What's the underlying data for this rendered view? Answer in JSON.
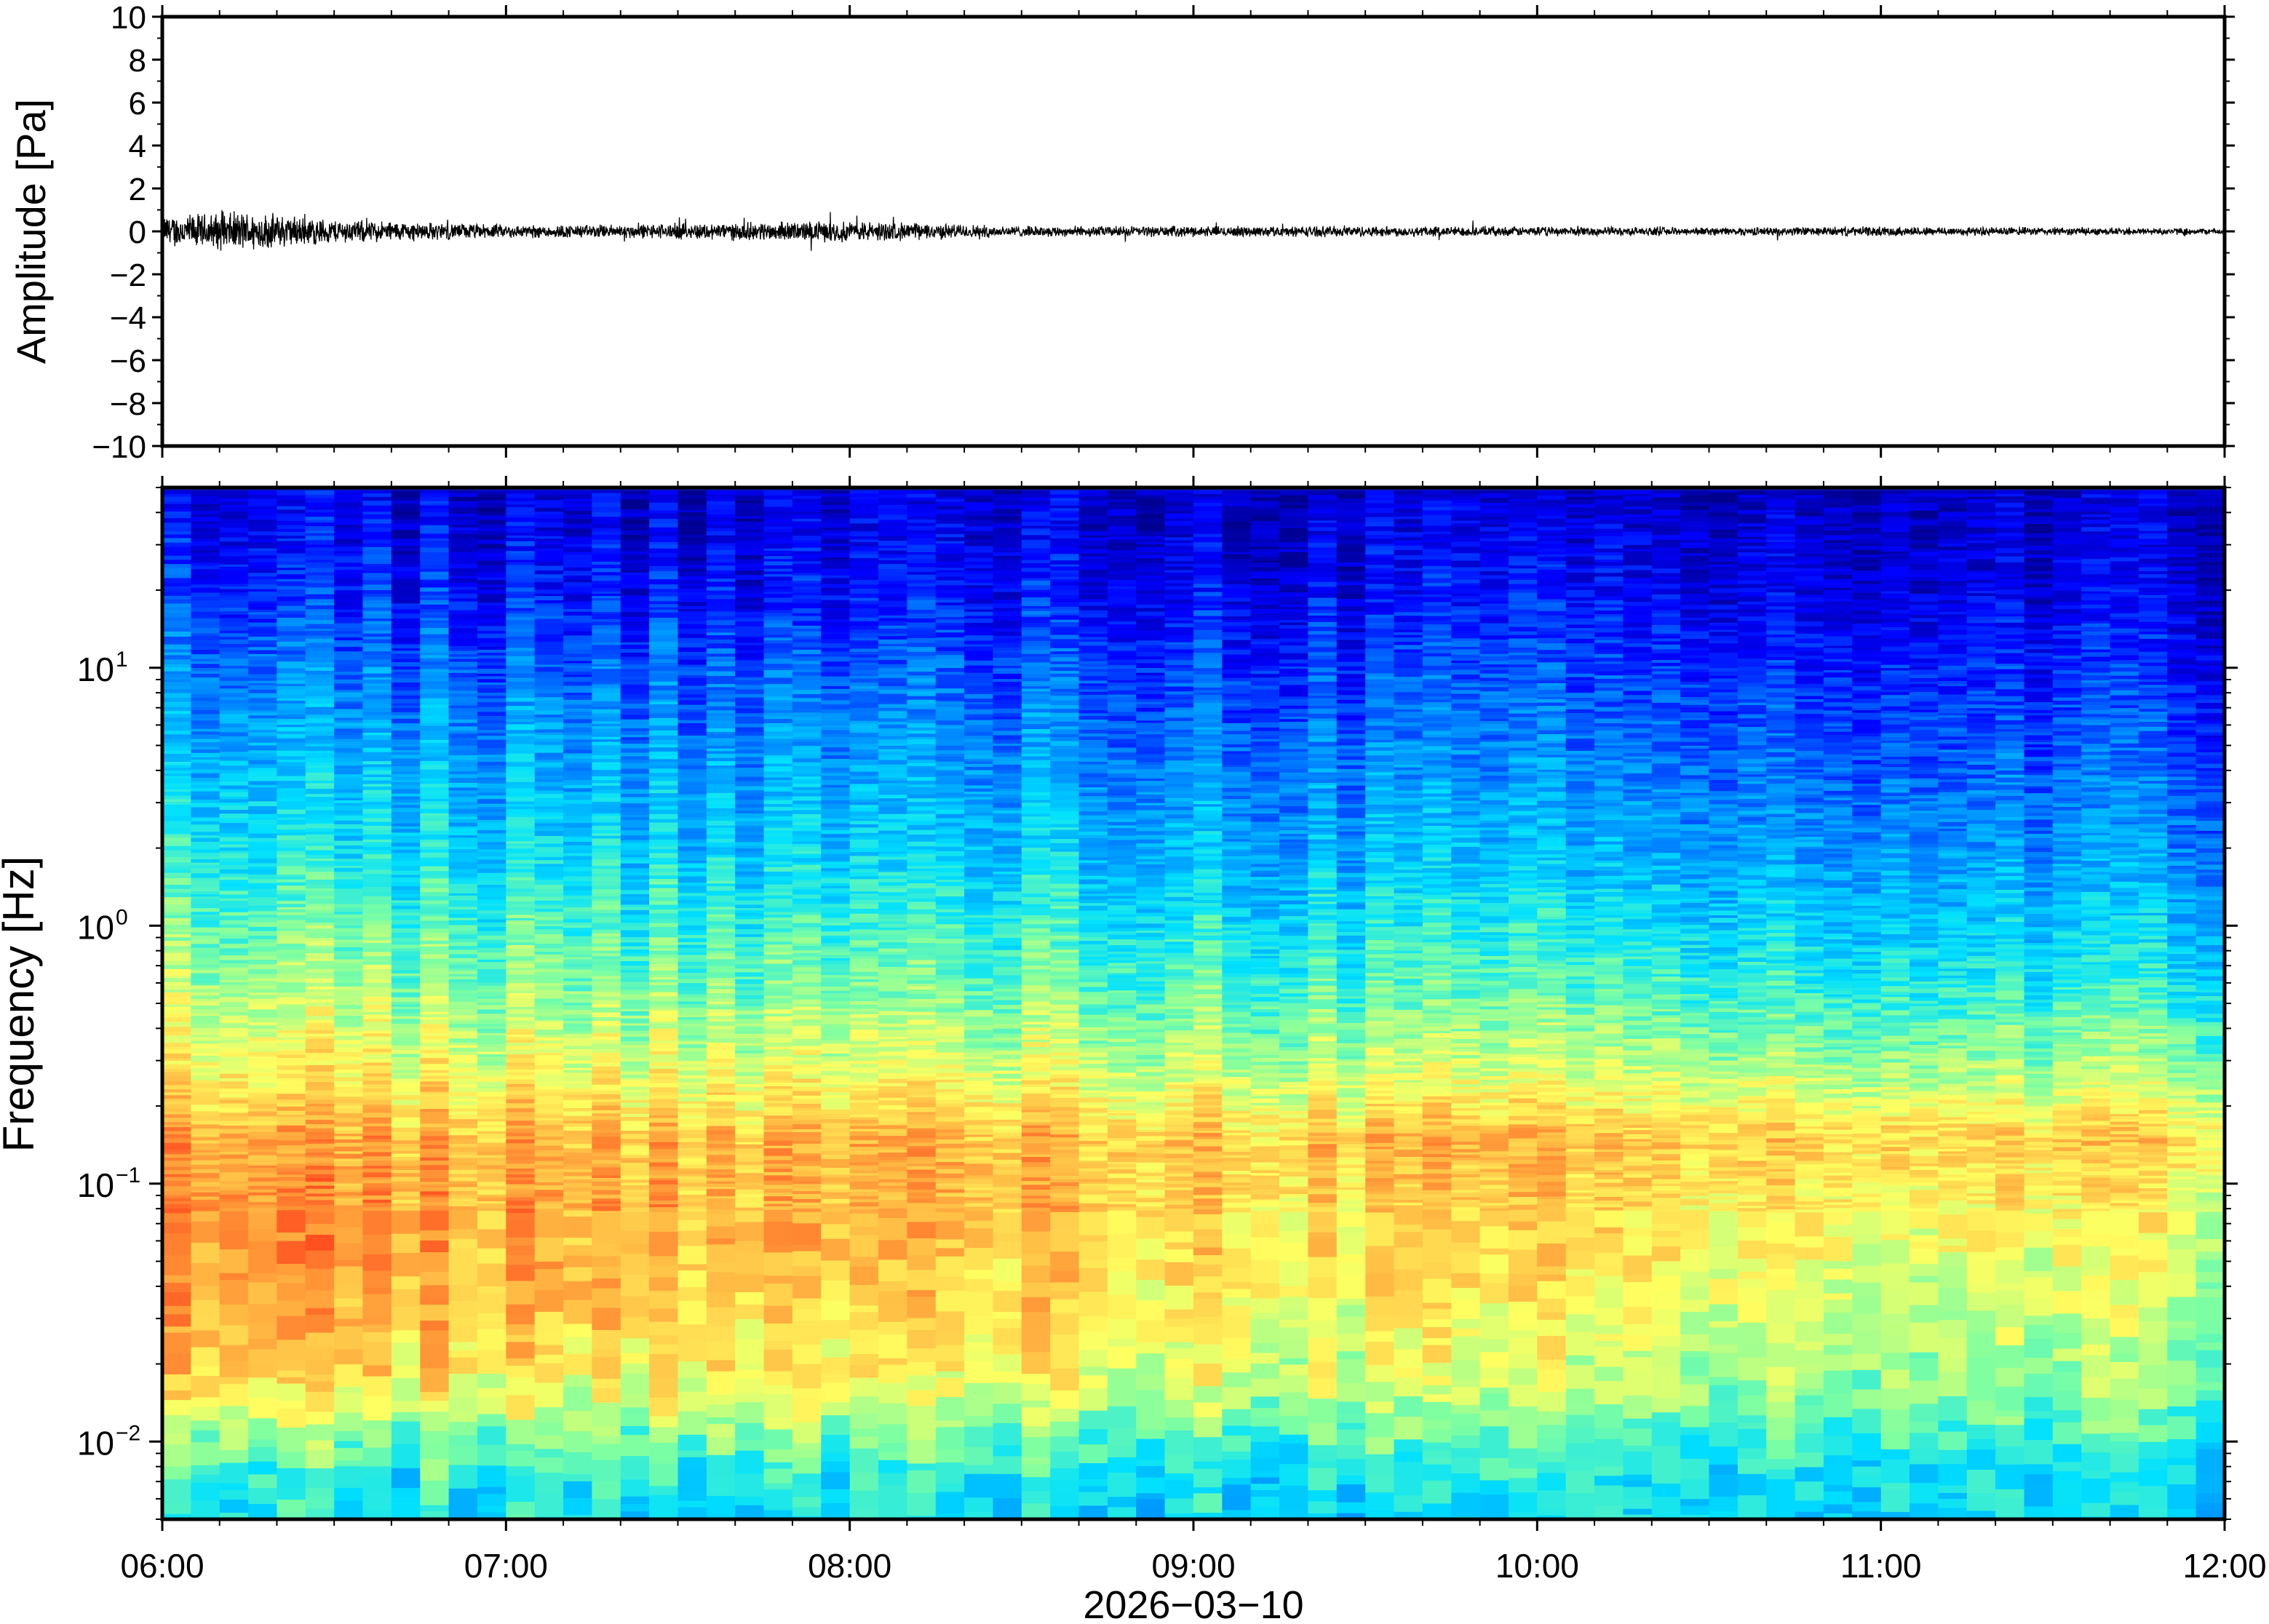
{
  "chart_data": [
    {
      "type": "line",
      "panel": "waveform",
      "title": "",
      "xlabel": "",
      "ylabel": "Amplitude [Pa]",
      "ylim": [
        -10,
        10
      ],
      "yticks": [
        10,
        8,
        6,
        4,
        2,
        0,
        -2,
        -4,
        -6,
        -8,
        -10
      ],
      "ytick_labels": [
        "10",
        "8",
        "6",
        "4",
        "2",
        "0",
        "−2",
        "−4",
        "−6",
        "−8",
        "−10"
      ],
      "x_range": [
        "06:00",
        "12:00"
      ],
      "envelope": {
        "t_hours": [
          0.0,
          0.25,
          0.5,
          0.75,
          1.0,
          1.25,
          1.5,
          1.75,
          2.0,
          2.25,
          2.5,
          2.75,
          3.0,
          3.5,
          4.0,
          4.5,
          5.0,
          5.5,
          6.0
        ],
        "amp_pa": [
          0.6,
          0.75,
          0.45,
          0.35,
          0.25,
          0.25,
          0.3,
          0.35,
          0.4,
          0.3,
          0.2,
          0.2,
          0.2,
          0.2,
          0.18,
          0.15,
          0.18,
          0.15,
          0.12
        ]
      },
      "grid": false
    },
    {
      "type": "heatmap",
      "panel": "spectrogram",
      "title": "",
      "xlabel": "2026−03−10",
      "ylabel": "Frequency [Hz]",
      "y_scale": "log",
      "ylim": [
        0.005,
        50
      ],
      "yticks": [
        0.01,
        0.1,
        1,
        10
      ],
      "ytick_labels": [
        {
          "base": "10",
          "exp": "−2"
        },
        {
          "base": "10",
          "exp": "−1"
        },
        {
          "base": "10",
          "exp": "0"
        },
        {
          "base": "10",
          "exp": "1"
        }
      ],
      "x_ticks": [
        "06:00",
        "07:00",
        "08:00",
        "09:00",
        "10:00",
        "11:00",
        "12:00"
      ],
      "colormap": "jet",
      "colormap_stops": [
        "#00008f",
        "#0000ff",
        "#0080ff",
        "#00e0ff",
        "#80ffa0",
        "#ffff60",
        "#ffb040",
        "#ff5020"
      ],
      "power_profile": {
        "description_free": true,
        "freq_hz": [
          0.005,
          0.008,
          0.012,
          0.02,
          0.04,
          0.08,
          0.15,
          0.3,
          0.6,
          1.0,
          2.0,
          5.0,
          10,
          20,
          50
        ],
        "level_start": [
          0.45,
          0.48,
          0.62,
          0.8,
          0.88,
          0.9,
          0.86,
          0.72,
          0.62,
          0.55,
          0.45,
          0.36,
          0.28,
          0.18,
          0.1
        ],
        "level_end": [
          0.4,
          0.43,
          0.5,
          0.57,
          0.64,
          0.7,
          0.78,
          0.58,
          0.45,
          0.38,
          0.3,
          0.22,
          0.16,
          0.1,
          0.06
        ]
      },
      "grid": false
    }
  ]
}
